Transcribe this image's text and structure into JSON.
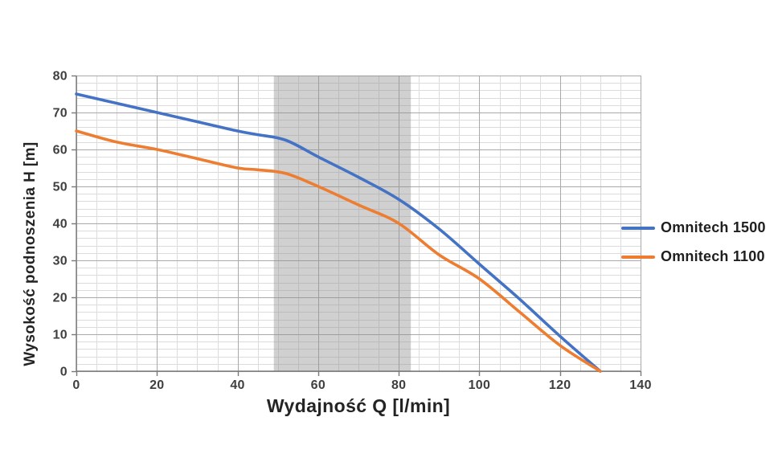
{
  "chart_data": {
    "type": "line",
    "title": "",
    "xlabel": "Wydajność Q [l/min]",
    "ylabel": "Wysokość podnoszenia H [m]",
    "xlim": [
      0,
      140
    ],
    "ylim": [
      0,
      80
    ],
    "x_ticks": [
      0,
      20,
      40,
      60,
      80,
      100,
      120,
      140
    ],
    "y_ticks": [
      0,
      10,
      20,
      30,
      40,
      50,
      60,
      70,
      80
    ],
    "x_major_step": 20,
    "x_minor_step": 5,
    "y_major_step": 10,
    "y_minor_step": 2,
    "grid": "major+minor",
    "legend_position": "right",
    "band": {
      "x_start": 49,
      "x_end": 83,
      "color": "#8f8f8f",
      "opacity": 0.42
    },
    "x": [
      0,
      10,
      20,
      30,
      40,
      45,
      52,
      60,
      70,
      80,
      90,
      100,
      110,
      120,
      130
    ],
    "series": [
      {
        "name": "Omnitech 1500",
        "color": "#4472c4",
        "values": [
          75,
          72.5,
          70,
          67.5,
          65,
          64,
          62.5,
          58,
          52.5,
          46.5,
          38.5,
          29,
          19.5,
          9.5,
          0
        ]
      },
      {
        "name": "Omnitech 1100",
        "color": "#ed7d31",
        "values": [
          65,
          62,
          60,
          57.5,
          55,
          54.5,
          53.5,
          50,
          45,
          40,
          31.5,
          25,
          16,
          7,
          0
        ]
      }
    ],
    "colors": {
      "grid_minor": "#dcdcdc",
      "grid_major": "#a9a9a9",
      "axis": "#7a7a7a",
      "tick_text": "#3f3f3f"
    }
  }
}
